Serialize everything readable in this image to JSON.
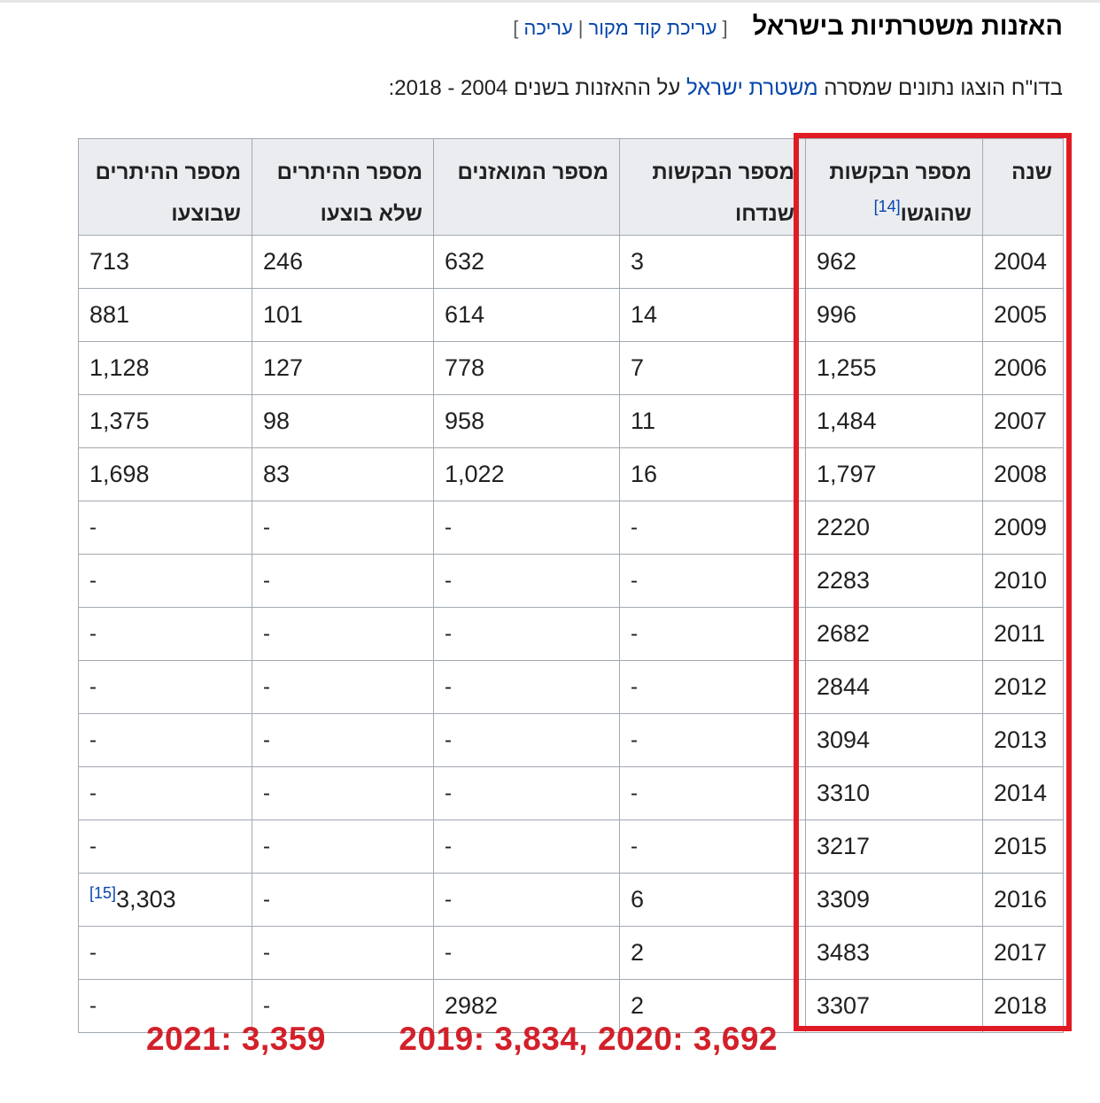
{
  "section": {
    "title": "האזנות משטרתיות בישראל",
    "bracket_open": "[",
    "bracket_close": "]",
    "edit_source_label": "עריכת קוד מקור",
    "separator": "|",
    "edit_label": "עריכה"
  },
  "intro": {
    "before_link": "בדו\"ח הוצגו נתונים שמסרה ",
    "link_text": "משטרת ישראל",
    "after_link": " על ההאזנות בשנים 2004 - 2018:"
  },
  "table": {
    "headers": {
      "year": "שנה",
      "requests_line1": "מספר הבקשות",
      "requests_line2": "שהוגשו",
      "requests_ref": "[14]",
      "rejected_line1": "מספר הבקשות",
      "rejected_line2": "שנדחו",
      "tapped_line1": "מספר המואזנים",
      "not_executed_line1": "מספר ההיתרים",
      "not_executed_line2": "שלא בוצעו",
      "executed_line1": "מספר ההיתרים",
      "executed_line2": "שבוצעו"
    },
    "rows": [
      {
        "year": "2004",
        "requests": "962",
        "rejected": "3",
        "tapped": "632",
        "not_executed": "246",
        "executed": "713",
        "executed_ref": ""
      },
      {
        "year": "2005",
        "requests": "996",
        "rejected": "14",
        "tapped": "614",
        "not_executed": "101",
        "executed": "881",
        "executed_ref": ""
      },
      {
        "year": "2006",
        "requests": "1,255",
        "rejected": "7",
        "tapped": "778",
        "not_executed": "127",
        "executed": "1,128",
        "executed_ref": ""
      },
      {
        "year": "2007",
        "requests": "1,484",
        "rejected": "11",
        "tapped": "958",
        "not_executed": "98",
        "executed": "1,375",
        "executed_ref": ""
      },
      {
        "year": "2008",
        "requests": "1,797",
        "rejected": "16",
        "tapped": "1,022",
        "not_executed": "83",
        "executed": "1,698",
        "executed_ref": ""
      },
      {
        "year": "2009",
        "requests": "2220",
        "rejected": "-",
        "tapped": "-",
        "not_executed": "-",
        "executed": "-",
        "executed_ref": ""
      },
      {
        "year": "2010",
        "requests": "2283",
        "rejected": "-",
        "tapped": "-",
        "not_executed": "-",
        "executed": "-",
        "executed_ref": ""
      },
      {
        "year": "2011",
        "requests": "2682",
        "rejected": "-",
        "tapped": "-",
        "not_executed": "-",
        "executed": "-",
        "executed_ref": ""
      },
      {
        "year": "2012",
        "requests": "2844",
        "rejected": "-",
        "tapped": "-",
        "not_executed": "-",
        "executed": "-",
        "executed_ref": ""
      },
      {
        "year": "2013",
        "requests": "3094",
        "rejected": "-",
        "tapped": "-",
        "not_executed": "-",
        "executed": "-",
        "executed_ref": ""
      },
      {
        "year": "2014",
        "requests": "3310",
        "rejected": "-",
        "tapped": "-",
        "not_executed": "-",
        "executed": "-",
        "executed_ref": ""
      },
      {
        "year": "2015",
        "requests": "3217",
        "rejected": "-",
        "tapped": "-",
        "not_executed": "-",
        "executed": "-",
        "executed_ref": ""
      },
      {
        "year": "2016",
        "requests": "3309",
        "rejected": "6",
        "tapped": "-",
        "not_executed": "-",
        "executed": "3,303",
        "executed_ref": "[15]"
      },
      {
        "year": "2017",
        "requests": "3483",
        "rejected": "2",
        "tapped": "-",
        "not_executed": "-",
        "executed": "-",
        "executed_ref": ""
      },
      {
        "year": "2018",
        "requests": "3307",
        "rejected": "2",
        "tapped": "2982",
        "not_executed": "-",
        "executed": "-",
        "executed_ref": ""
      }
    ]
  },
  "annotations": {
    "note_2019_2020": "2019: 3,834, 2020: 3,692",
    "note_2021": "2021: 3,359",
    "highlight_color": "#e01b24",
    "note_color": "#d3202a"
  }
}
